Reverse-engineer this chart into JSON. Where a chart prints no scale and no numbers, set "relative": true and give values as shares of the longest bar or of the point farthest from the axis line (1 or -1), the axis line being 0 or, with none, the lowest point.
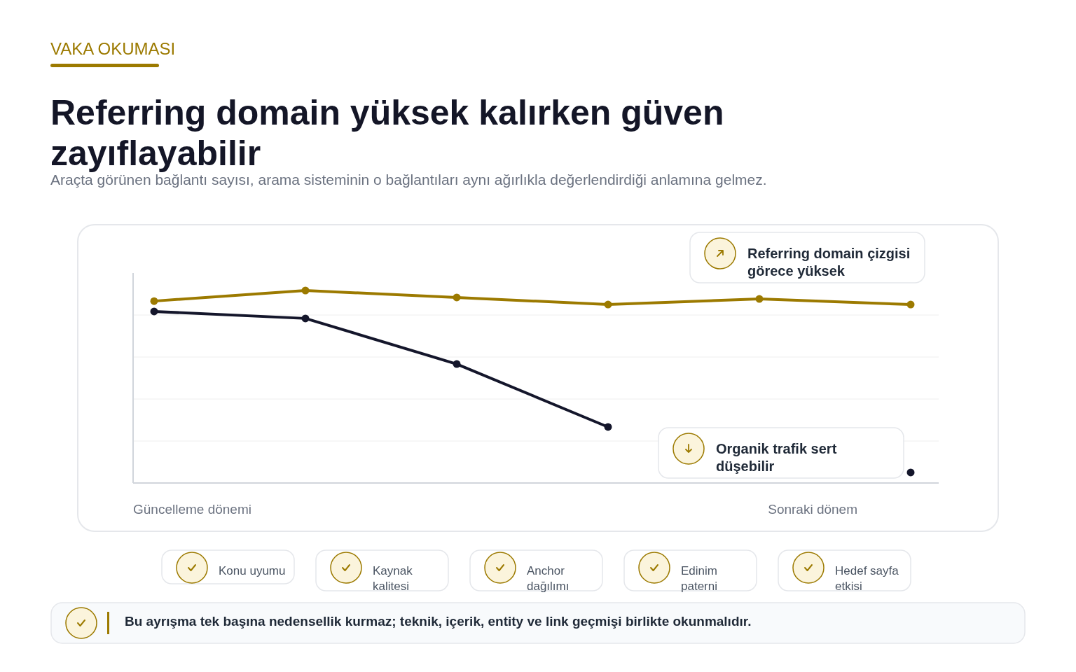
{
  "chart_data": {
    "type": "line",
    "title": "Referring domain yüksek kalırken güven zayıflayabilir",
    "subtitle": "Araçta görünen bağlantı sayısı, arama sisteminin o bağlantıları aynı ağırlıkla değerlendirdiği anlamına gelmez.",
    "relative": true,
    "grid": "y",
    "marker": "circle",
    "line_style": "solid",
    "categories": [
      null,
      null,
      null,
      null,
      null,
      null
    ],
    "series": [
      {
        "color": "#9c7a00",
        "values": [
          0.945,
          1,
          0.964,
          0.927,
          0.956,
          0.927
        ]
      },
      {
        "color": "#14162b",
        "values": [
          0.891,
          0.855,
          0.618,
          0.291,
          null,
          0.055
        ]
      }
    ],
    "annotations": [
      "VAKA OKUMASI",
      "Referring domain çizgisi görece yüksek",
      "Organik trafik sert düşebilir",
      "Güncelleme dönemi",
      "Sonraki dönem",
      "Konu uyumu",
      "Kaynak kalitesi",
      "Anchor dağılımı",
      "Edinim paterni",
      "Hedef sayfa etkisi",
      "Bu ayrışma tek başına nedensellik kurmaz; teknik, içerik, entity ve link geçmişi birlikte okunmalıdır."
    ]
  }
}
